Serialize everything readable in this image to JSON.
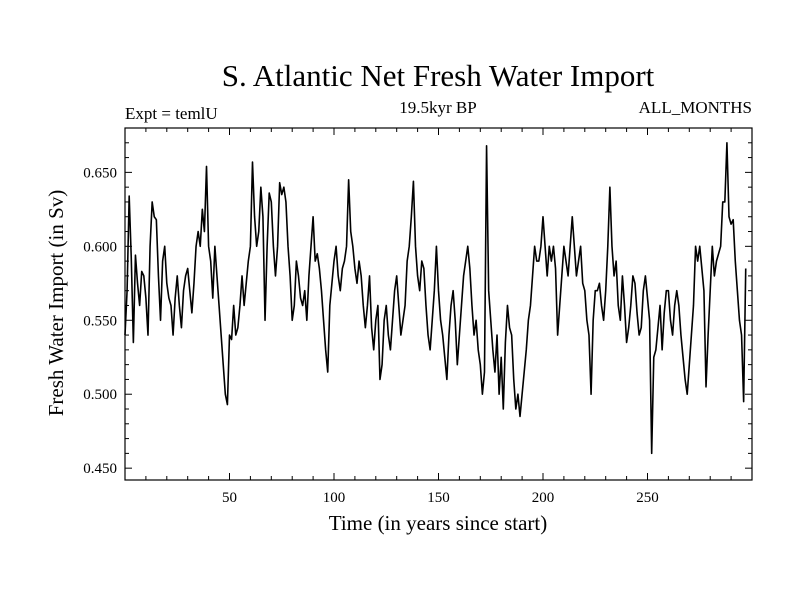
{
  "chart_data": {
    "type": "line",
    "title": "S. Atlantic Net Fresh Water Import",
    "subtitle_left": "Expt = temlU",
    "subtitle_center": "19.5kyr BP",
    "subtitle_right": "ALL_MONTHS",
    "xlabel": "Time (in years since start)",
    "ylabel": "Fresh Water Import (in Sv)",
    "xlim": [
      0,
      300
    ],
    "ylim": [
      0.442,
      0.68
    ],
    "xticks": [
      50,
      100,
      150,
      200,
      250
    ],
    "xtick_labels": [
      "50",
      "100",
      "150",
      "200",
      "250"
    ],
    "yticks": [
      0.45,
      0.5,
      0.55,
      0.6,
      0.65
    ],
    "ytick_labels": [
      "0.450",
      "0.500",
      "0.550",
      "0.600",
      "0.650"
    ],
    "series": [
      {
        "name": "Fresh Water Import",
        "x_start": 0,
        "x_step": 1,
        "values": [
          0.54,
          0.57,
          0.634,
          0.592,
          0.535,
          0.594,
          0.575,
          0.56,
          0.583,
          0.58,
          0.565,
          0.54,
          0.6,
          0.63,
          0.62,
          0.618,
          0.58,
          0.55,
          0.59,
          0.6,
          0.575,
          0.565,
          0.56,
          0.54,
          0.565,
          0.58,
          0.56,
          0.545,
          0.57,
          0.58,
          0.585,
          0.57,
          0.555,
          0.575,
          0.6,
          0.61,
          0.6,
          0.625,
          0.61,
          0.654,
          0.6,
          0.59,
          0.565,
          0.6,
          0.58,
          0.56,
          0.54,
          0.52,
          0.5,
          0.493,
          0.54,
          0.537,
          0.56,
          0.54,
          0.545,
          0.56,
          0.58,
          0.56,
          0.575,
          0.59,
          0.6,
          0.657,
          0.62,
          0.6,
          0.61,
          0.64,
          0.62,
          0.55,
          0.6,
          0.636,
          0.63,
          0.6,
          0.58,
          0.6,
          0.643,
          0.635,
          0.64,
          0.63,
          0.6,
          0.58,
          0.55,
          0.56,
          0.59,
          0.58,
          0.565,
          0.56,
          0.57,
          0.55,
          0.58,
          0.6,
          0.62,
          0.59,
          0.595,
          0.585,
          0.57,
          0.55,
          0.53,
          0.515,
          0.56,
          0.575,
          0.59,
          0.6,
          0.58,
          0.57,
          0.585,
          0.59,
          0.6,
          0.645,
          0.61,
          0.6,
          0.585,
          0.575,
          0.59,
          0.58,
          0.56,
          0.545,
          0.56,
          0.58,
          0.545,
          0.53,
          0.55,
          0.56,
          0.51,
          0.52,
          0.55,
          0.56,
          0.54,
          0.53,
          0.55,
          0.57,
          0.58,
          0.56,
          0.54,
          0.55,
          0.56,
          0.59,
          0.6,
          0.62,
          0.644,
          0.6,
          0.58,
          0.57,
          0.59,
          0.585,
          0.56,
          0.54,
          0.53,
          0.55,
          0.57,
          0.6,
          0.57,
          0.55,
          0.54,
          0.525,
          0.51,
          0.54,
          0.56,
          0.57,
          0.55,
          0.52,
          0.54,
          0.56,
          0.58,
          0.59,
          0.6,
          0.585,
          0.56,
          0.54,
          0.55,
          0.53,
          0.52,
          0.5,
          0.515,
          0.668,
          0.57,
          0.55,
          0.53,
          0.515,
          0.54,
          0.5,
          0.525,
          0.49,
          0.535,
          0.56,
          0.545,
          0.54,
          0.51,
          0.49,
          0.5,
          0.485,
          0.5,
          0.515,
          0.53,
          0.55,
          0.56,
          0.58,
          0.6,
          0.59,
          0.59,
          0.6,
          0.62,
          0.6,
          0.58,
          0.6,
          0.59,
          0.6,
          0.585,
          0.54,
          0.56,
          0.58,
          0.6,
          0.59,
          0.58,
          0.6,
          0.62,
          0.6,
          0.58,
          0.59,
          0.6,
          0.575,
          0.57,
          0.55,
          0.54,
          0.5,
          0.55,
          0.57,
          0.57,
          0.575,
          0.56,
          0.55,
          0.57,
          0.6,
          0.64,
          0.6,
          0.58,
          0.59,
          0.56,
          0.55,
          0.58,
          0.56,
          0.535,
          0.545,
          0.56,
          0.58,
          0.575,
          0.555,
          0.54,
          0.545,
          0.57,
          0.58,
          0.565,
          0.55,
          0.46,
          0.525,
          0.53,
          0.545,
          0.56,
          0.53,
          0.555,
          0.57,
          0.57,
          0.55,
          0.54,
          0.56,
          0.57,
          0.56,
          0.54,
          0.525,
          0.51,
          0.5,
          0.52,
          0.54,
          0.56,
          0.6,
          0.59,
          0.6,
          0.585,
          0.57,
          0.505,
          0.54,
          0.57,
          0.6,
          0.58,
          0.59,
          0.595,
          0.6,
          0.63,
          0.63,
          0.67,
          0.62,
          0.615,
          0.618,
          0.59,
          0.57,
          0.55,
          0.54,
          0.495,
          0.585
        ]
      }
    ]
  }
}
